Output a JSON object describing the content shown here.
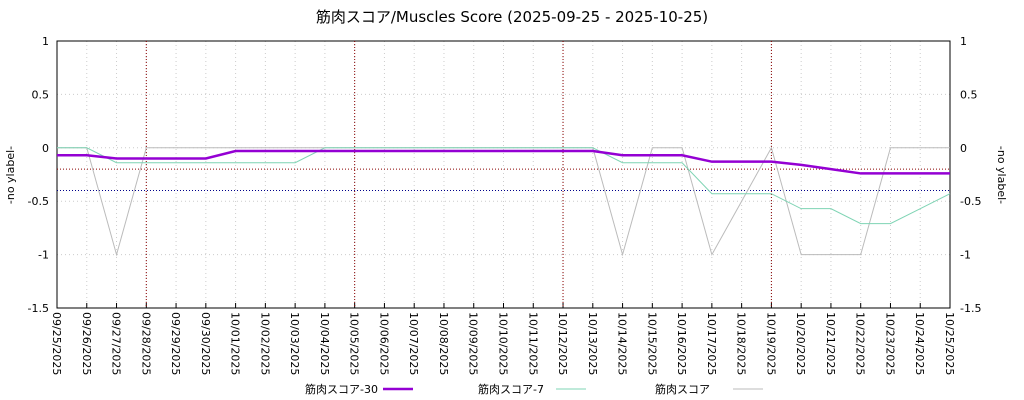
{
  "chart_data": {
    "type": "line",
    "title": "筋肉スコア/Muscles Score (2025-09-25 - 2025-10-25)",
    "y_label": "-no ylabel-",
    "categories": [
      "09/25/2025",
      "09/26/2025",
      "09/27/2025",
      "09/28/2025",
      "09/29/2025",
      "09/30/2025",
      "10/01/2025",
      "10/02/2025",
      "10/03/2025",
      "10/04/2025",
      "10/05/2025",
      "10/06/2025",
      "10/07/2025",
      "10/08/2025",
      "10/09/2025",
      "10/10/2025",
      "10/11/2025",
      "10/12/2025",
      "10/13/2025",
      "10/14/2025",
      "10/15/2025",
      "10/16/2025",
      "10/17/2025",
      "10/18/2025",
      "10/19/2025",
      "10/20/2025",
      "10/21/2025",
      "10/22/2025",
      "10/23/2025",
      "10/24/2025",
      "10/25/2025"
    ],
    "series": [
      {
        "name": "筋肉スコア-30",
        "color": "#9400d3",
        "width": 2.5,
        "values": [
          -0.07,
          -0.07,
          -0.1,
          -0.1,
          -0.1,
          -0.1,
          -0.03,
          -0.03,
          -0.03,
          -0.03,
          -0.03,
          -0.03,
          -0.03,
          -0.03,
          -0.03,
          -0.03,
          -0.03,
          -0.03,
          -0.03,
          -0.07,
          -0.07,
          -0.07,
          -0.13,
          -0.13,
          -0.13,
          -0.16,
          -0.2,
          -0.24,
          -0.24,
          -0.24,
          -0.24
        ]
      },
      {
        "name": "筋肉スコア-7",
        "color": "#7fd4b4",
        "width": 1,
        "values": [
          0,
          0,
          -0.14,
          -0.14,
          -0.14,
          -0.14,
          -0.14,
          -0.14,
          -0.14,
          0,
          0,
          0,
          0,
          0,
          0,
          0,
          0,
          0,
          0,
          -0.14,
          -0.14,
          -0.14,
          -0.43,
          -0.43,
          -0.43,
          -0.57,
          -0.57,
          -0.71,
          -0.71,
          -0.57,
          -0.43
        ]
      },
      {
        "name": "筋肉スコア",
        "color": "#bbbbbb",
        "width": 1,
        "values": [
          0,
          0,
          -1,
          0,
          0,
          0,
          0,
          0,
          0,
          0,
          0,
          0,
          0,
          0,
          0,
          0,
          0,
          0,
          0,
          -1,
          0,
          0,
          -1,
          -0.5,
          0,
          -1,
          -1,
          -1,
          0,
          0,
          0
        ]
      }
    ],
    "hlines": [
      {
        "value": -0.2,
        "color": "#8b0000"
      },
      {
        "value": -0.4,
        "color": "#00008b"
      }
    ],
    "vlines": {
      "dates": [
        "09/28/2025",
        "10/05/2025",
        "10/12/2025",
        "10/19/2025"
      ],
      "color": "#8b0000"
    },
    "ylim": [
      -1.5,
      1
    ],
    "yticks": [
      1,
      0.5,
      0,
      -0.5,
      -1,
      -1.5
    ],
    "grid": true
  }
}
